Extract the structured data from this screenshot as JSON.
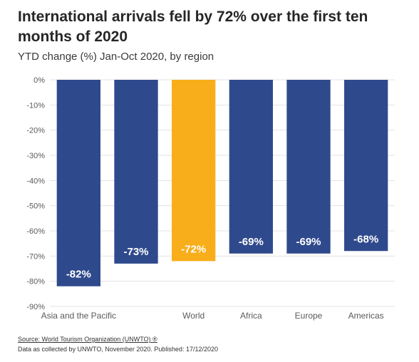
{
  "title": "International arrivals fell by 72% over the first ten months of 2020",
  "subtitle": "YTD change (%) Jan-Oct 2020, by region",
  "source": {
    "prefix": "Source: ",
    "link_text": "Source: World Tourism Organization (UNWTO) ®",
    "line2": "Data as collected by UNWTO, November 2020. Published: 17/12/2020"
  },
  "colors": {
    "region": "#2f4a8c",
    "world": "#f8ae1b"
  },
  "chart_data": {
    "type": "bar",
    "categories": [
      "Asia and the Pacific",
      "",
      "World",
      "Africa",
      "Europe",
      "Americas"
    ],
    "values": [
      -82,
      -73,
      -72,
      -69,
      -69,
      -68
    ],
    "data_labels": [
      "-82%",
      "-73%",
      "-72%",
      "-69%",
      "-69%",
      "-68%"
    ],
    "highlight": [
      false,
      false,
      true,
      false,
      false,
      false
    ],
    "ylim": [
      -90,
      0
    ],
    "yticks": [
      0,
      -10,
      -20,
      -30,
      -40,
      -50,
      -60,
      -70,
      -80,
      -90
    ],
    "ytick_labels": [
      "0%",
      "-10%",
      "-20%",
      "-30%",
      "-40%",
      "-50%",
      "-60%",
      "-70%",
      "-80%",
      "-90%"
    ],
    "grid": true,
    "xlabel": "",
    "ylabel": ""
  }
}
